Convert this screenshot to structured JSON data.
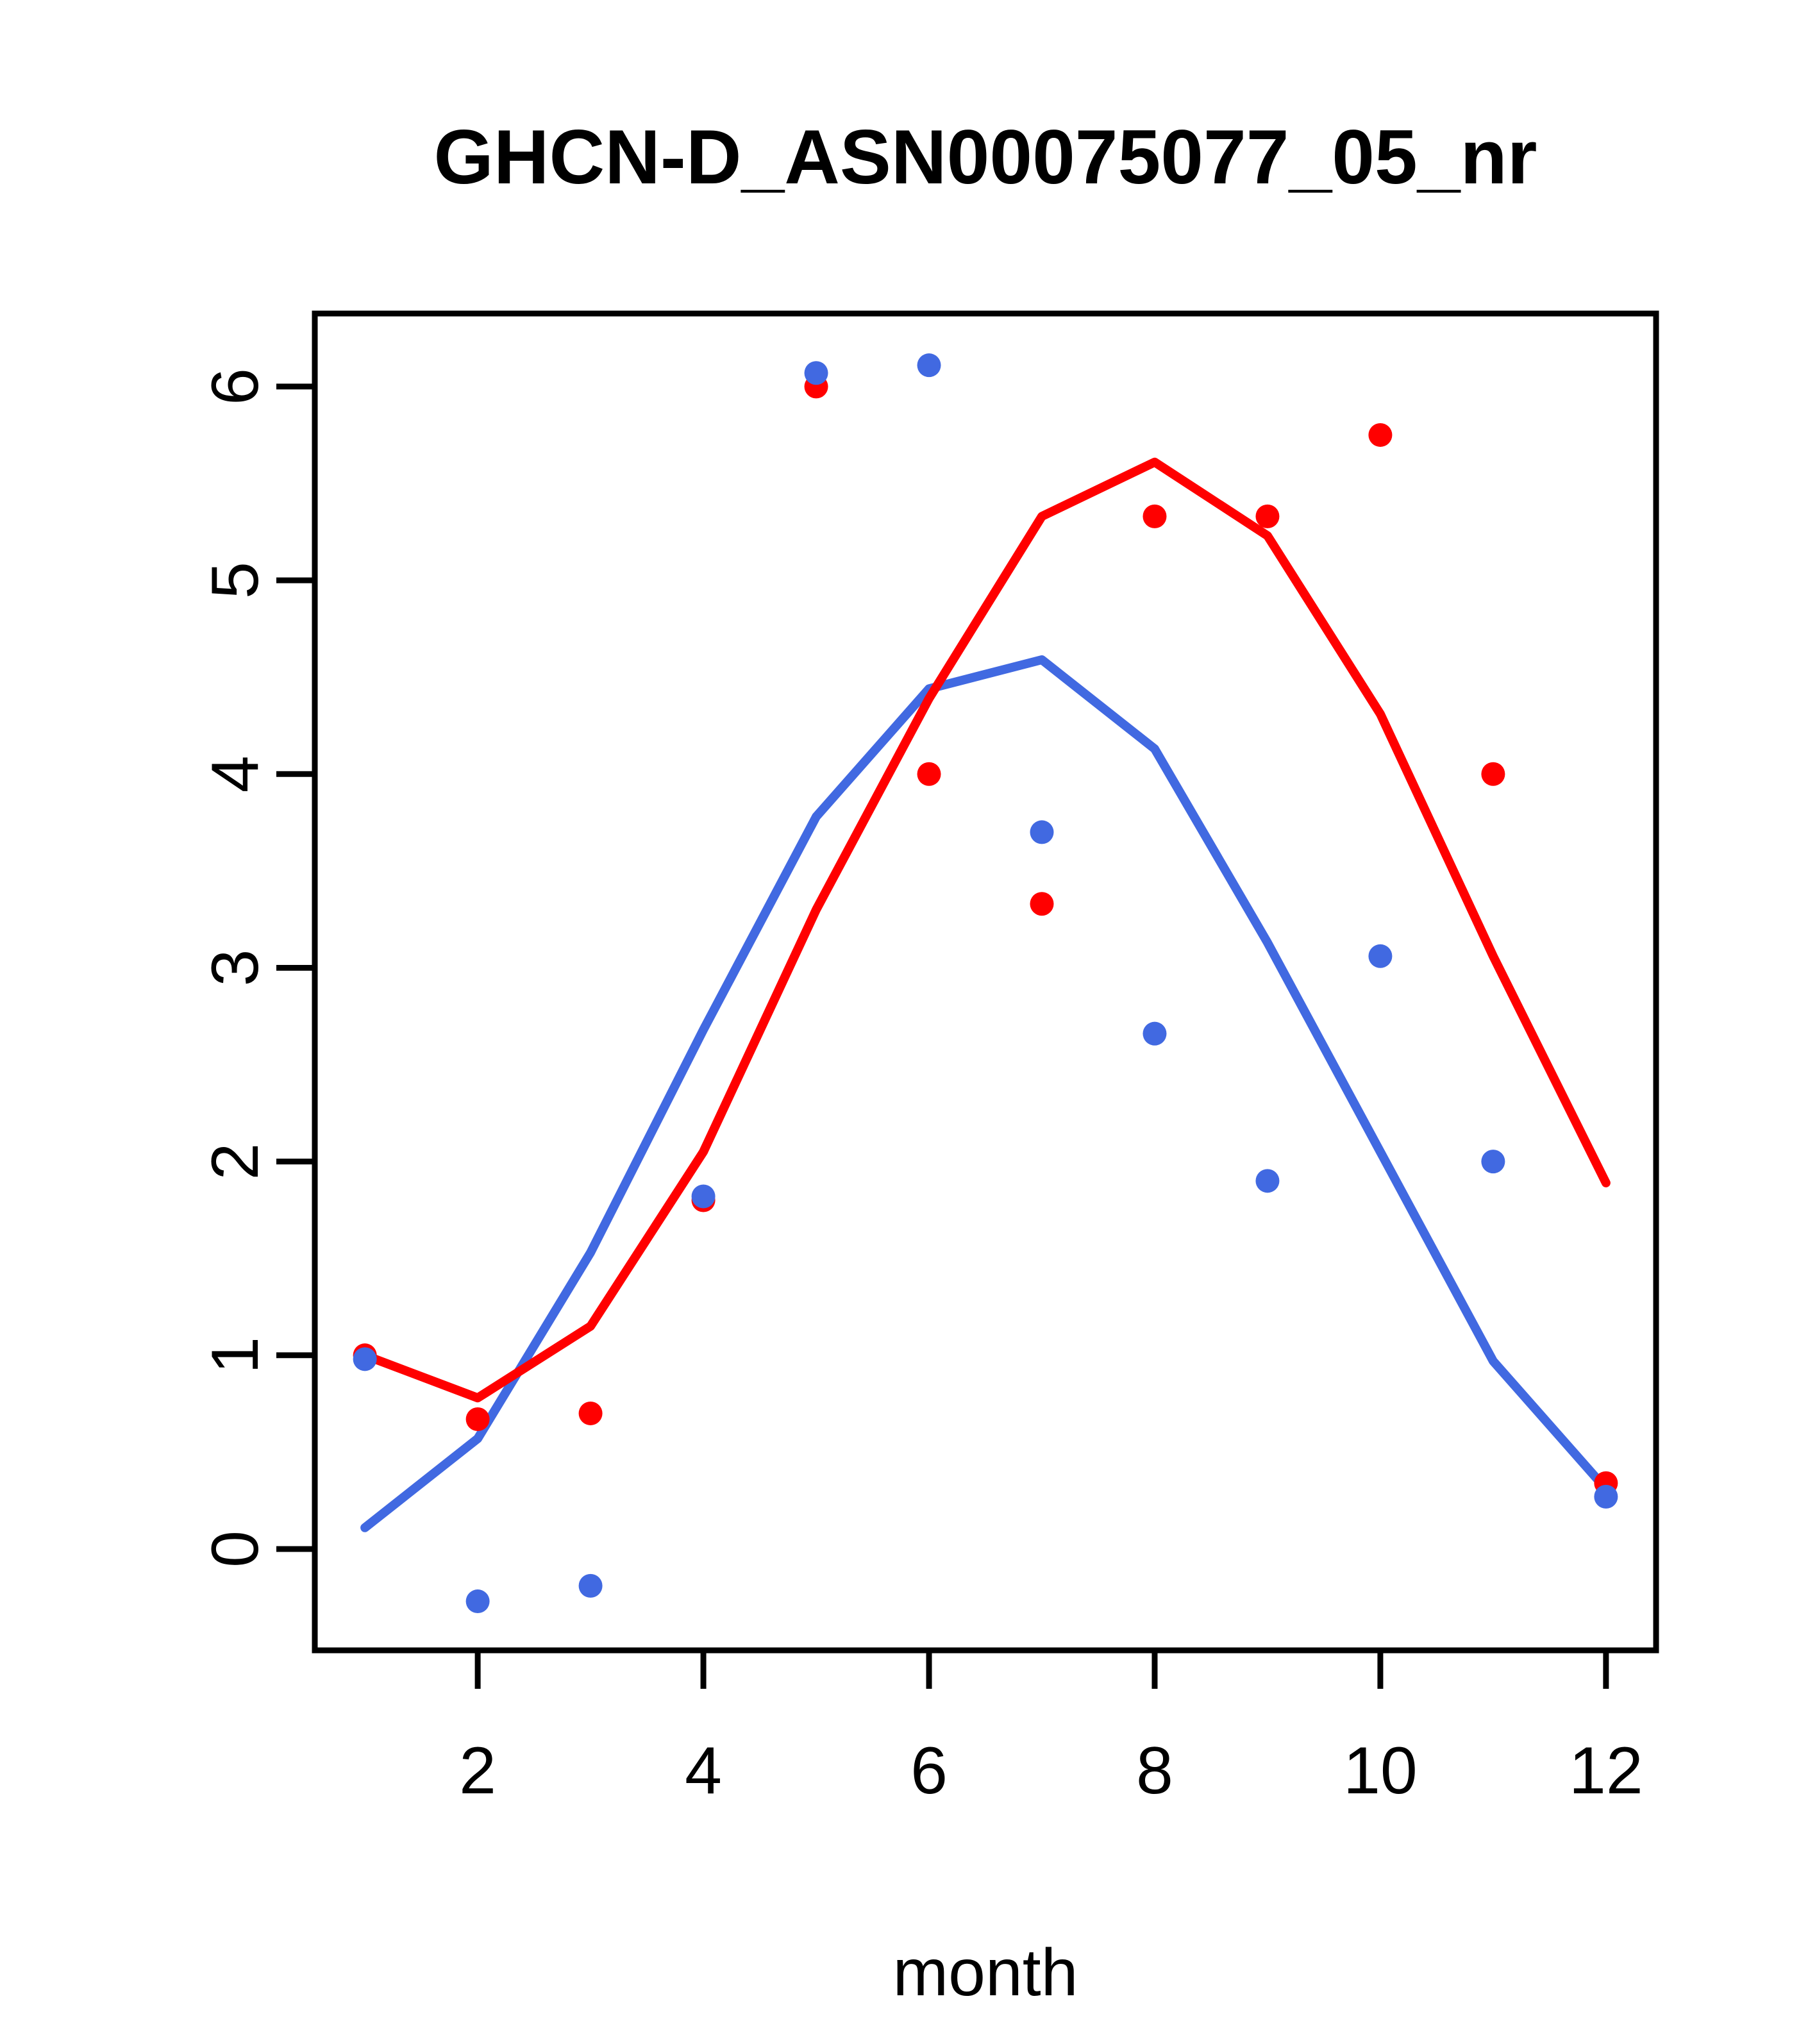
{
  "title": "GHCN-D_ASN00075077_05_nr",
  "xlabel": "month",
  "colors": {
    "red": "#FF0000",
    "blue": "#4169E1",
    "axis": "#000000",
    "background": "#FFFFFF"
  },
  "chart_data": {
    "type": "scatter",
    "title": "GHCN-D_ASN00075077_05_nr",
    "xlabel": "month",
    "ylabel": "",
    "x": [
      1,
      2,
      3,
      4,
      5,
      6,
      7,
      8,
      9,
      10,
      11,
      12
    ],
    "x_ticks": [
      2,
      4,
      6,
      8,
      10,
      12
    ],
    "y_ticks": [
      0,
      1,
      2,
      3,
      4,
      5,
      6
    ],
    "xlim": [
      0.556,
      12.444
    ],
    "ylim": [
      -0.523,
      6.377
    ],
    "grid": false,
    "legend": "none",
    "series": [
      {
        "name": "blue-line",
        "type": "line",
        "color": "#4169E1",
        "values": [
          0.11,
          0.57,
          1.53,
          2.68,
          3.78,
          4.44,
          4.59,
          4.13,
          3.13,
          2.05,
          0.97,
          0.31
        ]
      },
      {
        "name": "red-line",
        "type": "line",
        "color": "#FF0000",
        "values": [
          1.0,
          0.78,
          1.15,
          2.05,
          3.3,
          4.39,
          5.33,
          5.61,
          5.23,
          4.31,
          3.06,
          1.89
        ]
      },
      {
        "name": "red-points",
        "type": "scatter",
        "color": "#FF0000",
        "values": [
          1.0,
          0.67,
          0.7,
          1.8,
          6.0,
          4.0,
          3.33,
          5.33,
          5.33,
          5.75,
          4.0,
          0.34
        ]
      },
      {
        "name": "blue-points",
        "type": "scatter",
        "color": "#4169E1",
        "values": [
          0.98,
          -0.27,
          -0.19,
          1.82,
          6.07,
          6.11,
          3.7,
          2.66,
          1.9,
          3.06,
          2.0,
          0.27
        ]
      }
    ]
  }
}
